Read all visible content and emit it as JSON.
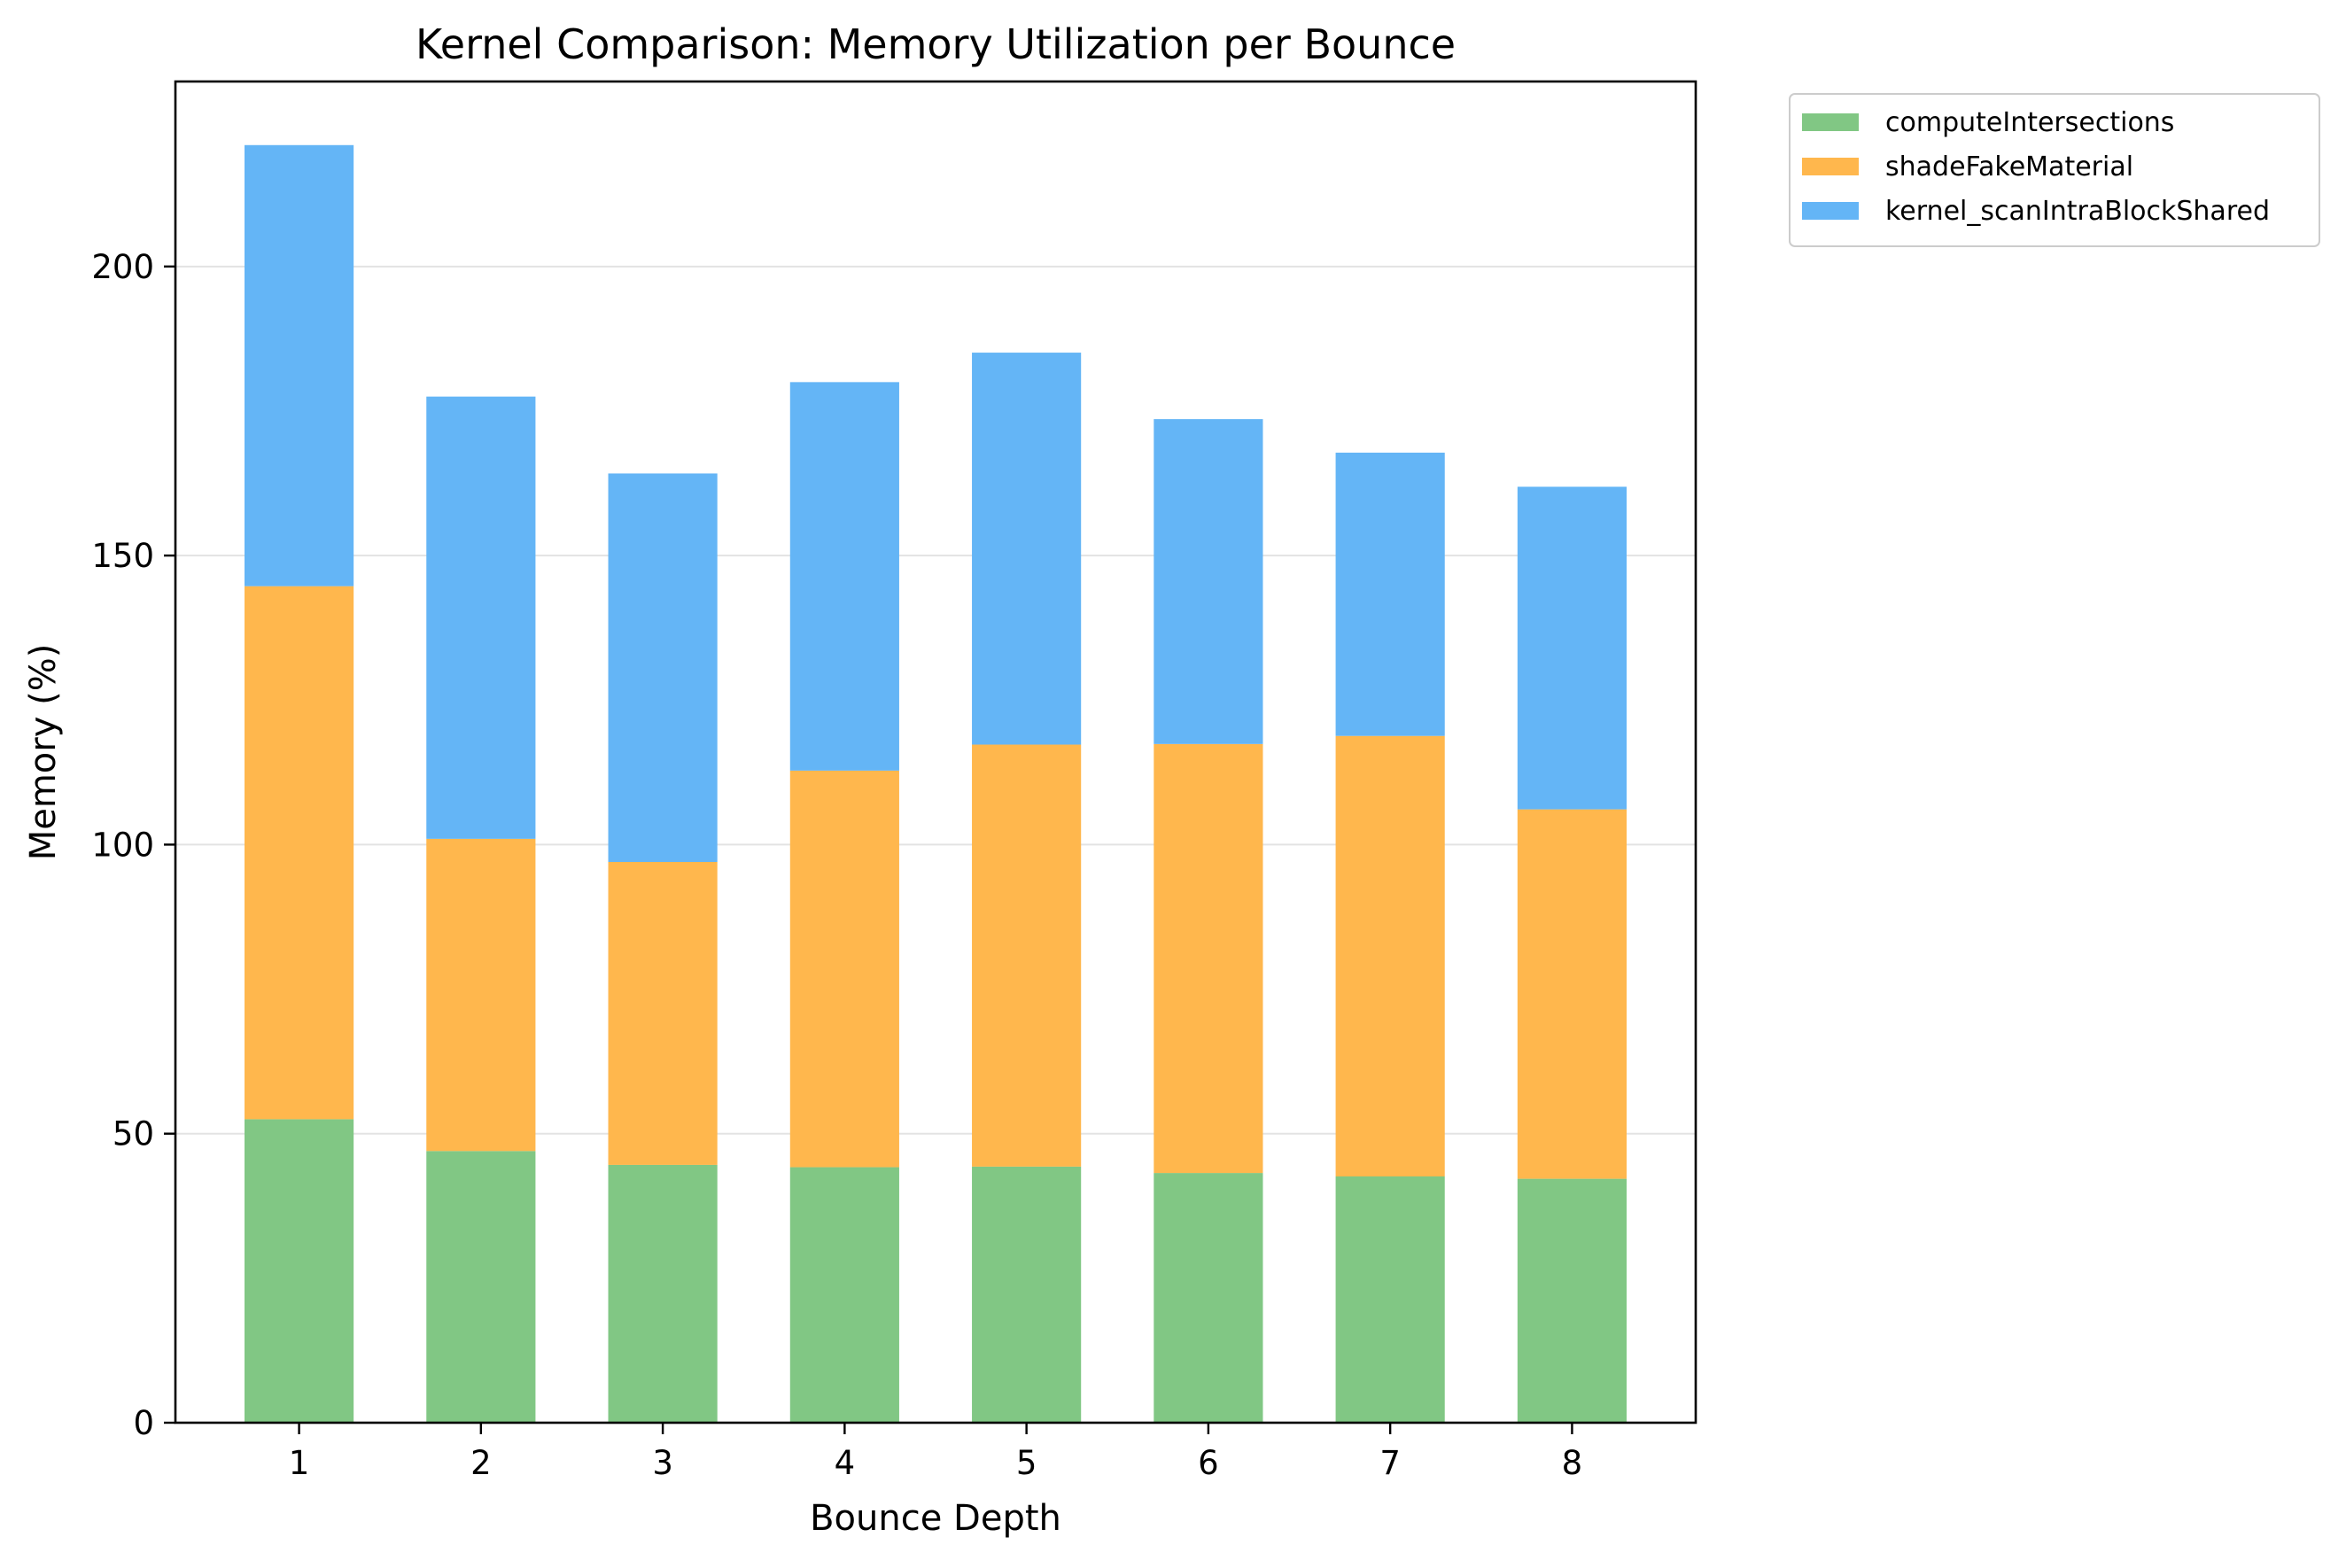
{
  "chart_data": {
    "type": "bar",
    "stacked": true,
    "title": "Kernel Comparison: Memory Utilization per Bounce",
    "xlabel": "Bounce Depth",
    "ylabel": "Memory (%)",
    "categories": [
      "1",
      "2",
      "3",
      "4",
      "5",
      "6",
      "7",
      "8"
    ],
    "ylim": [
      0,
      232
    ],
    "yticks": [
      0,
      50,
      100,
      150,
      200
    ],
    "grid": "horizontal",
    "legend_position": "outside top-right",
    "series": [
      {
        "name": "computeIntersections",
        "color": "#81c784",
        "values": [
          52.5,
          47.0,
          44.6,
          44.2,
          44.3,
          43.2,
          42.6,
          42.2
        ]
      },
      {
        "name": "shadeFakeMaterial",
        "color": "#ffb74d",
        "values": [
          92.2,
          54.0,
          52.4,
          68.6,
          73.0,
          74.2,
          76.2,
          63.9
        ]
      },
      {
        "name": "kernel_scanIntraBlockShared",
        "color": "#64b5f6",
        "values": [
          76.3,
          76.5,
          67.2,
          67.2,
          67.8,
          56.2,
          49.0,
          55.8
        ]
      }
    ]
  }
}
